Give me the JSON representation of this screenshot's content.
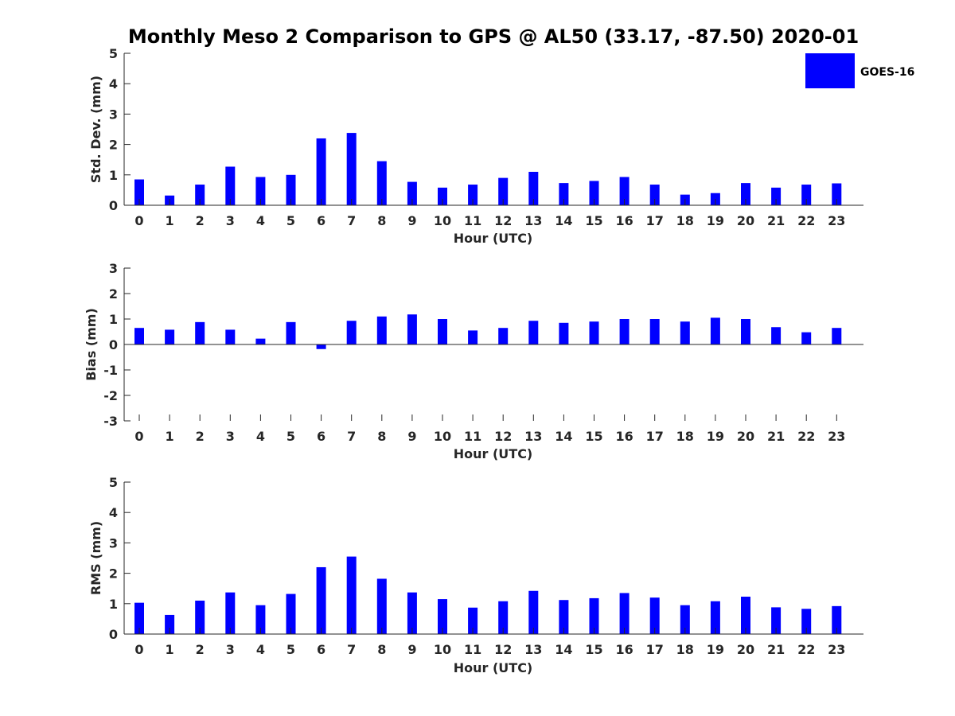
{
  "title": "Monthly Meso 2 Comparison to GPS @ AL50 (33.17, -87.50) 2020-01",
  "legend": {
    "label": "GOES-16",
    "color": "#0000ff",
    "placement": "top-right"
  },
  "chart_data": [
    {
      "type": "bar",
      "xlabel": "Hour (UTC)",
      "ylabel": "Std. Dev. (mm)",
      "categories": [
        "0",
        "1",
        "2",
        "3",
        "4",
        "5",
        "6",
        "7",
        "8",
        "9",
        "10",
        "11",
        "12",
        "13",
        "14",
        "15",
        "16",
        "17",
        "18",
        "19",
        "20",
        "21",
        "22",
        "23"
      ],
      "ylim": [
        0,
        5
      ],
      "yticks": [
        "0",
        "1",
        "2",
        "3",
        "4",
        "5"
      ],
      "grid": false,
      "series": [
        {
          "name": "GOES-16",
          "color": "#0000ff",
          "values": [
            0.85,
            0.32,
            0.68,
            1.27,
            0.93,
            1.0,
            2.2,
            2.38,
            1.45,
            0.77,
            0.58,
            0.68,
            0.9,
            1.1,
            0.73,
            0.8,
            0.93,
            0.68,
            0.35,
            0.4,
            0.73,
            0.58,
            0.68,
            0.72
          ]
        }
      ]
    },
    {
      "type": "bar",
      "xlabel": "Hour (UTC)",
      "ylabel": "Bias (mm)",
      "categories": [
        "0",
        "1",
        "2",
        "3",
        "4",
        "5",
        "6",
        "7",
        "8",
        "9",
        "10",
        "11",
        "12",
        "13",
        "14",
        "15",
        "16",
        "17",
        "18",
        "19",
        "20",
        "21",
        "22",
        "23"
      ],
      "ylim": [
        -3,
        3
      ],
      "yticks": [
        "-3",
        "-2",
        "-1",
        "0",
        "1",
        "2",
        "3"
      ],
      "grid": false,
      "series": [
        {
          "name": "GOES-16",
          "color": "#0000ff",
          "values": [
            0.65,
            0.58,
            0.88,
            0.58,
            0.23,
            0.88,
            -0.18,
            0.93,
            1.1,
            1.18,
            1.0,
            0.55,
            0.65,
            0.93,
            0.85,
            0.9,
            1.0,
            1.0,
            0.9,
            1.05,
            1.0,
            0.68,
            0.48,
            0.65
          ]
        }
      ]
    },
    {
      "type": "bar",
      "xlabel": "Hour (UTC)",
      "ylabel": "RMS (mm)",
      "categories": [
        "0",
        "1",
        "2",
        "3",
        "4",
        "5",
        "6",
        "7",
        "8",
        "9",
        "10",
        "11",
        "12",
        "13",
        "14",
        "15",
        "16",
        "17",
        "18",
        "19",
        "20",
        "21",
        "22",
        "23"
      ],
      "ylim": [
        0,
        5
      ],
      "yticks": [
        "0",
        "1",
        "2",
        "3",
        "4",
        "5"
      ],
      "grid": false,
      "series": [
        {
          "name": "GOES-16",
          "color": "#0000ff",
          "values": [
            1.03,
            0.63,
            1.1,
            1.37,
            0.95,
            1.32,
            2.2,
            2.55,
            1.82,
            1.37,
            1.15,
            0.87,
            1.08,
            1.42,
            1.12,
            1.18,
            1.35,
            1.2,
            0.95,
            1.08,
            1.23,
            0.88,
            0.83,
            0.92
          ]
        }
      ]
    }
  ]
}
